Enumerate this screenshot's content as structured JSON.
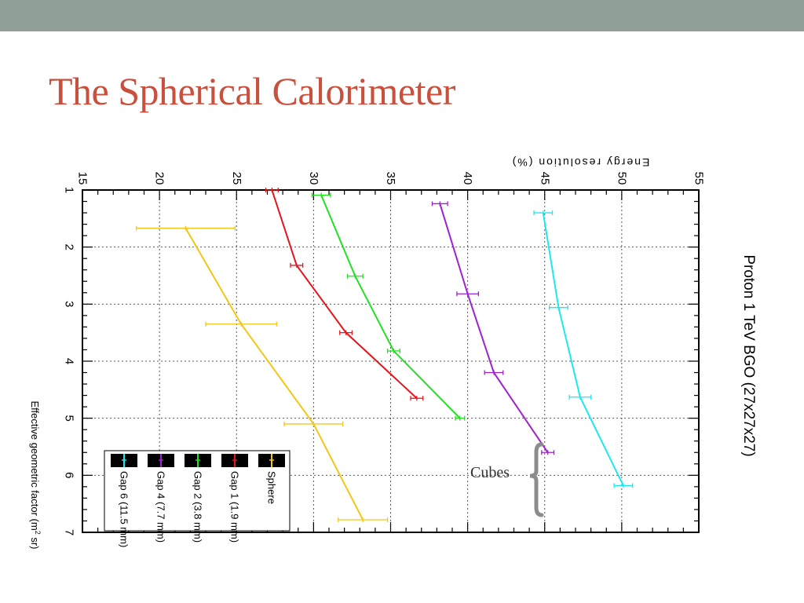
{
  "slide": {
    "title": "The Spherical Calorimeter",
    "bar_color": "#919f99",
    "title_color": "#c8503d"
  },
  "annotation": {
    "cubes_label": "Cubes",
    "bracket_color": "#8c8c8c",
    "bracket_spans_series": [
      "Gap 4 (7.7 mm)",
      "Gap 6 (11.5 mm)"
    ]
  },
  "chart_data": {
    "type": "line",
    "orientation": "rotated-90-clockwise",
    "title": "Proton 1 TeV BGO (27x27x27)",
    "xlabel": "Effective geometric factor (m² sr)",
    "ylabel": "Energy resolution (%)",
    "xlim": [
      1,
      7
    ],
    "ylim": [
      15,
      55
    ],
    "x_ticks": [
      "1",
      "2",
      "3",
      "4",
      "5",
      "6",
      "7"
    ],
    "y_ticks": [
      "15",
      "20",
      "25",
      "30",
      "35",
      "40",
      "45",
      "50",
      "55"
    ],
    "grid": true,
    "legend_position": "bottom-left",
    "series": [
      {
        "name": "Sphere",
        "color": "#f5c518",
        "x": [
          1.67,
          3.35,
          5.1,
          6.78
        ],
        "y": [
          21.7,
          25.3,
          30.0,
          33.2
        ],
        "x_err": [
          0.0,
          0.0,
          0.0,
          0.0
        ],
        "y_err": [
          3.2,
          2.3,
          1.9,
          1.6
        ]
      },
      {
        "name": "Gap 1 (1.9 mm)",
        "color": "#e8141b",
        "x": [
          1.0,
          2.32,
          3.5,
          4.65
        ],
        "y": [
          27.3,
          28.9,
          32.1,
          36.7
        ],
        "x_err": [
          0.0,
          0.0,
          0.0,
          0.0
        ],
        "y_err": [
          0.4,
          0.4,
          0.4,
          0.4
        ]
      },
      {
        "name": "Gap 2 (3.8 mm)",
        "color": "#22e022",
        "x": [
          1.09,
          2.51,
          3.82,
          5.0
        ],
        "y": [
          30.5,
          32.7,
          35.2,
          39.5
        ],
        "x_err": [
          0.0,
          0.0,
          0.0,
          0.0
        ],
        "y_err": [
          0.6,
          0.5,
          0.4,
          0.3
        ]
      },
      {
        "name": "Gap 4 (7.7 mm)",
        "color": "#a020d0",
        "x": [
          1.24,
          2.82,
          4.2,
          5.6
        ],
        "y": [
          38.2,
          40.0,
          41.7,
          45.2
        ],
        "x_err": [
          0.0,
          0.0,
          0.0,
          0.0
        ],
        "y_err": [
          0.5,
          0.7,
          0.6,
          0.4
        ]
      },
      {
        "name": "Gap 6 (11.5 mm)",
        "color": "#1ce8f0",
        "x": [
          1.4,
          3.06,
          4.63,
          6.18
        ],
        "y": [
          44.9,
          45.9,
          47.3,
          50.1
        ],
        "x_err": [
          0.0,
          0.0,
          0.0,
          0.0
        ],
        "y_err": [
          0.6,
          0.6,
          0.7,
          0.6
        ]
      }
    ]
  }
}
